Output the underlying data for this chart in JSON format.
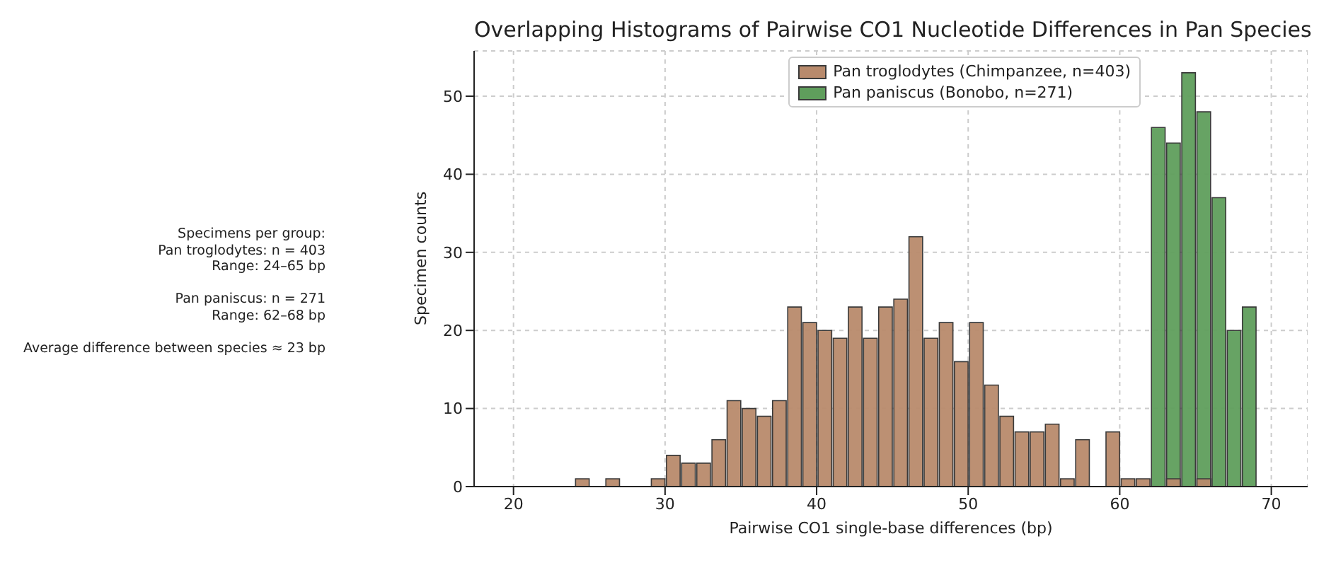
{
  "chart_data": {
    "type": "histogram",
    "title": "Overlapping Histograms of Pairwise CO1 Nucleotide Differences in Pan Species",
    "xlabel": "Pairwise CO1 single-base differences (bp)",
    "ylabel": "Specimen counts",
    "annotations": [
      "Specimens per group:\nPan troglodytes: n = 403\nRange: 24–65 bp\n\nPan paniscus: n = 271\nRange: 62–68 bp\n\nAverage difference between species ≈ 23 bp"
    ],
    "bins": [
      24,
      25,
      26,
      27,
      28,
      29,
      30,
      31,
      32,
      33,
      34,
      35,
      36,
      37,
      38,
      39,
      40,
      41,
      42,
      43,
      44,
      45,
      46,
      47,
      48,
      49,
      50,
      51,
      52,
      53,
      54,
      55,
      56,
      57,
      58,
      59,
      60,
      61,
      62,
      63,
      64,
      65,
      66,
      67,
      68,
      69
    ],
    "series": [
      {
        "name": "Pan troglodytes (Chimpanzee, n=403)",
        "color": "#b88a6c",
        "values": [
          1,
          0,
          1,
          0,
          0,
          1,
          4,
          3,
          3,
          6,
          11,
          10,
          9,
          11,
          23,
          21,
          20,
          19,
          23,
          19,
          23,
          24,
          32,
          19,
          21,
          16,
          21,
          13,
          9,
          7,
          7,
          8,
          1,
          6,
          0,
          7,
          1,
          1,
          0,
          1,
          0,
          1,
          0,
          0,
          0
        ]
      },
      {
        "name": "Pan paniscus (Bonobo, n=271)",
        "color": "#5f9e5c",
        "values": [
          0,
          0,
          0,
          0,
          0,
          0,
          0,
          0,
          0,
          0,
          0,
          0,
          0,
          0,
          0,
          0,
          0,
          0,
          0,
          0,
          0,
          0,
          0,
          0,
          0,
          0,
          0,
          0,
          0,
          0,
          0,
          0,
          0,
          0,
          0,
          0,
          0,
          0,
          46,
          44,
          53,
          48,
          37,
          20,
          23
        ]
      }
    ],
    "xlim": [
      17.4,
      72.4
    ],
    "xticks": [
      20,
      30,
      40,
      50,
      60,
      70
    ],
    "ylim": [
      0,
      55.8
    ],
    "yticks": [
      0,
      10,
      20,
      30,
      40,
      50
    ],
    "grid": true,
    "legend": "top right"
  }
}
